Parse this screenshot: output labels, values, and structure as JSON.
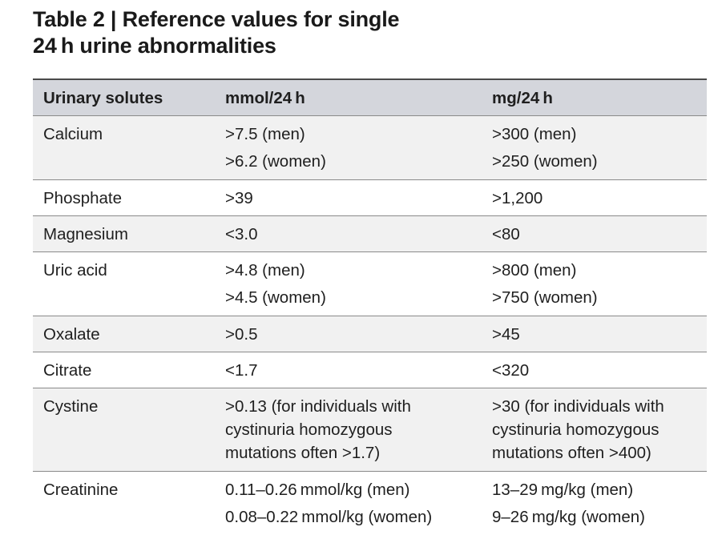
{
  "title": {
    "line1": "Table 2 | Reference values for single",
    "line2": "24 h urine abnormalities"
  },
  "table": {
    "headers": [
      "Urinary solutes",
      "mmol/24 h",
      "mg/24 h"
    ],
    "rows": [
      {
        "solute": "Calcium",
        "mmol": [
          ">7.5 (men)",
          ">6.2 (women)"
        ],
        "mg": [
          ">300 (men)",
          ">250 (women)"
        ]
      },
      {
        "solute": "Phosphate",
        "mmol": [
          ">39"
        ],
        "mg": [
          ">1,200"
        ]
      },
      {
        "solute": "Magnesium",
        "mmol": [
          "<3.0"
        ],
        "mg": [
          "<80"
        ]
      },
      {
        "solute": "Uric acid",
        "mmol": [
          ">4.8 (men)",
          ">4.5 (women)"
        ],
        "mg": [
          ">800 (men)",
          ">750 (women)"
        ]
      },
      {
        "solute": "Oxalate",
        "mmol": [
          ">0.5"
        ],
        "mg": [
          ">45"
        ]
      },
      {
        "solute": "Citrate",
        "mmol": [
          "<1.7"
        ],
        "mg": [
          "<320"
        ]
      },
      {
        "solute": "Cystine",
        "mmol": [
          ">0.13 (for individuals with",
          "cystinuria homozygous",
          "mutations often >1.7)"
        ],
        "mg": [
          ">30 (for individuals with",
          "cystinuria homozygous",
          "mutations often >400)"
        ]
      },
      {
        "solute": "Creatinine",
        "mmol": [
          "0.11–0.26 mmol/kg (men)",
          "0.08–0.22 mmol/kg (women)"
        ],
        "mg": [
          "13–29 mg/kg (men)",
          "9–26 mg/kg (women)"
        ]
      }
    ]
  }
}
